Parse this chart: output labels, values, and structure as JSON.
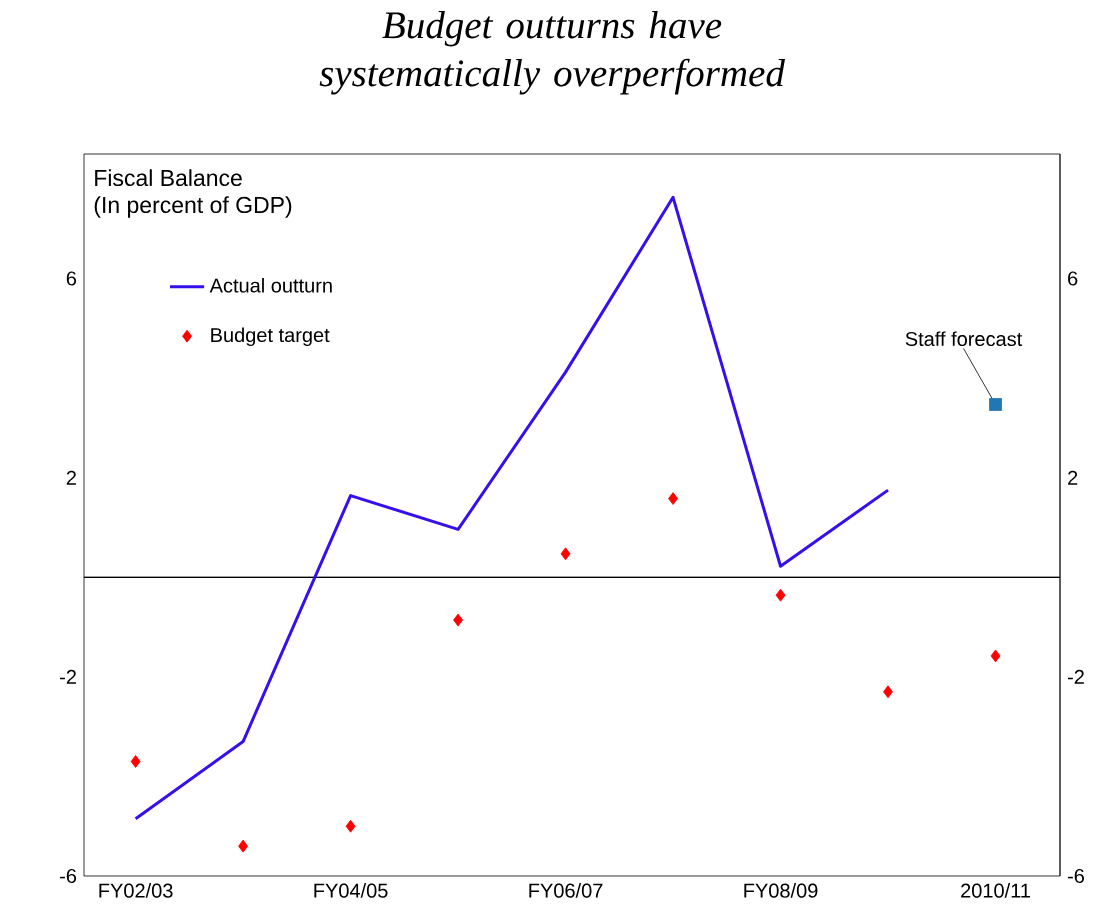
{
  "chart_data": {
    "type": "line",
    "title": "Budget outturns have systematically overperformed",
    "categories": [
      "FY02/03",
      null,
      "FY04/05",
      null,
      "FY06/07",
      null,
      "FY08/09",
      null,
      "2010/11"
    ],
    "series": [
      {
        "name": "Actual outturn",
        "color": "#3311ee",
        "marker": "none",
        "line_style": "solid",
        "values": [
          -4.85,
          -3.3,
          1.64,
          0.96,
          4.12,
          7.63,
          0.22,
          1.75,
          null
        ]
      },
      {
        "name": "Budget target",
        "type": "scatter",
        "color": "#ff0000",
        "marker": "diamond",
        "values": [
          -3.7,
          -5.4,
          -5.0,
          -0.86,
          0.47,
          1.58,
          -0.36,
          -2.3,
          -1.58
        ]
      },
      {
        "type": "scatter",
        "color": "#1f77b4",
        "marker": "square",
        "values": [
          null,
          null,
          null,
          null,
          null,
          null,
          null,
          null,
          3.47
        ]
      }
    ],
    "ylim": [
      -6,
      8.5
    ],
    "yticks": [
      -6,
      -2,
      2,
      6
    ],
    "y2lim": [
      -6,
      8.5
    ],
    "y2ticks": [
      -6,
      -2,
      2,
      6
    ],
    "ref_lines": [
      {
        "axis": "y",
        "value": 0,
        "color": "#000000"
      }
    ],
    "annotations": [
      "Fiscal Balance",
      "(In percent of GDP)",
      {
        "text": "Staff forecast",
        "x": "2010/11",
        "y": 3.47
      }
    ],
    "legend": "top left",
    "grid": false
  }
}
